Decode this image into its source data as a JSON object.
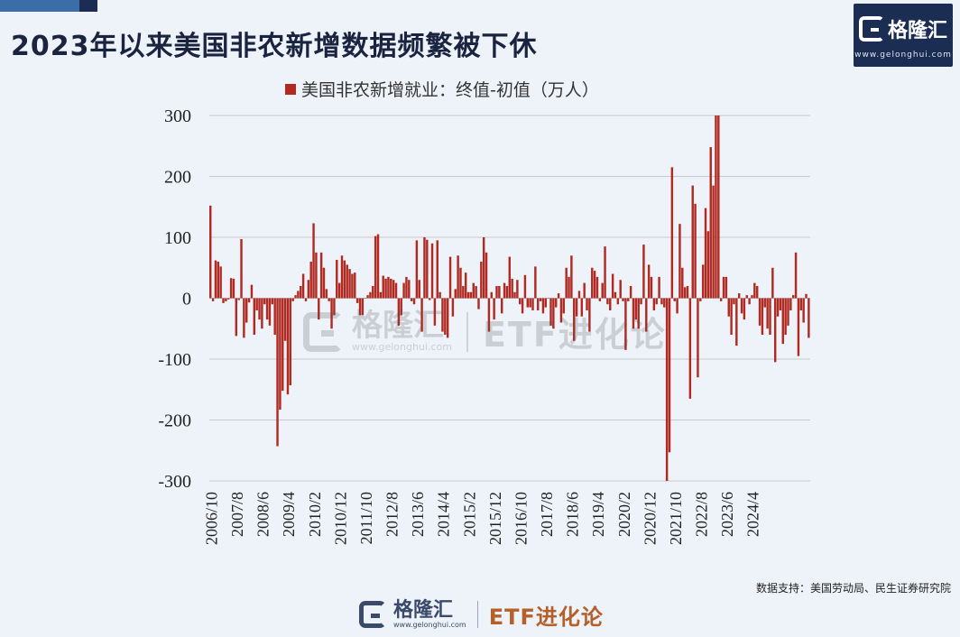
{
  "header": {
    "title": "2023年以来美国非农新增数据频繁被下休"
  },
  "brand": {
    "name": "格隆汇",
    "url": "www.gelonghui.com",
    "partner": "ETF进化论"
  },
  "source": "数据支持：美国劳动局、民生证券研究院",
  "colors": {
    "bar": "#b02a22",
    "background": "#eef3f9",
    "grid": "#c9c9c9",
    "title": "#1a2440",
    "brand_box": "#1c2d54"
  },
  "chart_data": {
    "type": "bar",
    "title": "",
    "xlabel": "",
    "ylabel": "",
    "legend": {
      "label": "美国非农新增就业：终值-初值（万人）",
      "position": "top-center"
    },
    "ylim": [
      -300,
      300
    ],
    "yticks": [
      300,
      200,
      100,
      0,
      -100,
      -200,
      -300
    ],
    "grid": true,
    "x_start": "2006/10",
    "xticks": [
      "2006/10",
      "2007/8",
      "2008/6",
      "2009/4",
      "2010/2",
      "2010/12",
      "2011/10",
      "2012/8",
      "2013/6",
      "2014/4",
      "2015/2",
      "2015/12",
      "2016/10",
      "2017/8",
      "2018/6",
      "2019/4",
      "2020/2",
      "2020/12",
      "2021/10",
      "2022/8",
      "2023/6",
      "2024/4"
    ],
    "values": [
      152,
      -5,
      62,
      60,
      52,
      -8,
      -5,
      -2,
      33,
      32,
      -62,
      -3,
      97,
      -65,
      -40,
      -7,
      22,
      -60,
      -20,
      -35,
      -50,
      -10,
      -35,
      -45,
      -10,
      -60,
      -243,
      -183,
      -152,
      -70,
      -158,
      -143,
      -5,
      5,
      12,
      20,
      40,
      -5,
      30,
      60,
      123,
      75,
      -35,
      75,
      50,
      15,
      -5,
      -50,
      -28,
      63,
      25,
      70,
      62,
      55,
      48,
      40,
      42,
      -8,
      -28,
      -28,
      0,
      5,
      10,
      20,
      102,
      105,
      10,
      37,
      32,
      35,
      32,
      30,
      25,
      -45,
      -28,
      25,
      35,
      30,
      -5,
      -10,
      95,
      30,
      -55,
      100,
      96,
      -3,
      90,
      -45,
      95,
      10,
      -55,
      -60,
      -65,
      68,
      -30,
      15,
      70,
      50,
      20,
      42,
      10,
      10,
      25,
      20,
      -18,
      60,
      100,
      75,
      -55,
      10,
      -35,
      20,
      20,
      -25,
      25,
      20,
      68,
      32,
      10,
      30,
      -10,
      -25,
      38,
      -15,
      -15,
      -20,
      52,
      -20,
      -5,
      -25,
      -15,
      0,
      -45,
      -50,
      -15,
      8,
      -40,
      -25,
      50,
      35,
      70,
      -70,
      -30,
      12,
      -30,
      25,
      -20,
      -55,
      50,
      45,
      35,
      -5,
      25,
      85,
      -10,
      -20,
      40,
      10,
      -10,
      30,
      -5,
      -85,
      -5,
      20,
      -50,
      -35,
      -50,
      -10,
      88,
      -55,
      55,
      35,
      -20,
      -10,
      35,
      -10,
      -15,
      -300,
      -253,
      215,
      -5,
      -25,
      122,
      50,
      18,
      20,
      -165,
      185,
      155,
      -130,
      -5,
      55,
      148,
      110,
      248,
      185,
      300,
      300,
      -5,
      35,
      35,
      -30,
      -60,
      -10,
      -78,
      8,
      -25,
      -35,
      5,
      -10,
      5,
      25,
      20,
      -45,
      -60,
      -15,
      -50,
      -60,
      50,
      -105,
      -30,
      -20,
      -75,
      -60,
      -45,
      -20,
      5,
      75,
      -95,
      -20,
      -40,
      7,
      -65
    ]
  }
}
